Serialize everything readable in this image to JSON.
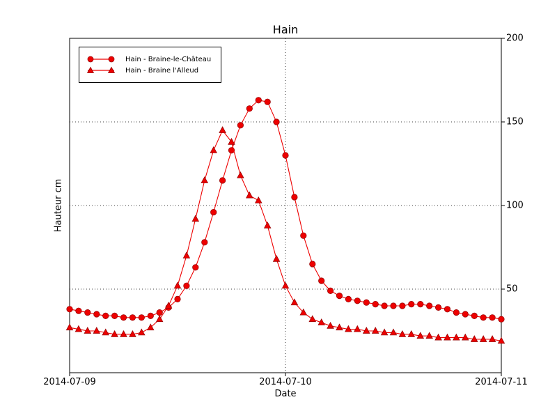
{
  "chart_data": {
    "type": "line",
    "title": "Hain",
    "xlabel": "Date",
    "ylabel": "Hauteur cm",
    "x_tick_labels": [
      "2014-07-09",
      "2014-07-10",
      "2014-07-11"
    ],
    "x_tick_hours": [
      0,
      24,
      48
    ],
    "y_ticks": [
      200,
      150,
      100,
      50
    ],
    "y_tick_side": "right",
    "ylim": [
      0,
      200
    ],
    "xlim_hours": [
      0,
      48
    ],
    "grid": true,
    "grid_style": "dotted",
    "legend_position": "upper-left",
    "line_color": "#ee0000",
    "marker_edge_color": "#990000",
    "x_hours": [
      0,
      1,
      2,
      3,
      4,
      5,
      6,
      7,
      8,
      9,
      10,
      11,
      12,
      13,
      14,
      15,
      16,
      17,
      18,
      19,
      20,
      21,
      22,
      23,
      24,
      25,
      26,
      27,
      28,
      29,
      30,
      31,
      32,
      33,
      34,
      35,
      36,
      37,
      38,
      39,
      40,
      41,
      42,
      43,
      44,
      45,
      46,
      47,
      48
    ],
    "series": [
      {
        "name": "Hain - Braine-le-Château",
        "marker": "circle",
        "color": "#ee0000",
        "values": [
          38,
          37,
          36,
          35,
          34,
          34,
          33,
          33,
          33,
          34,
          36,
          39,
          44,
          52,
          63,
          78,
          96,
          115,
          133,
          148,
          158,
          163,
          162,
          150,
          130,
          105,
          82,
          65,
          55,
          49,
          46,
          44,
          43,
          42,
          41,
          40,
          40,
          40,
          41,
          41,
          40,
          39,
          38,
          36,
          35,
          34,
          33,
          33,
          32
        ]
      },
      {
        "name": "Hain - Braine l'Alleud",
        "marker": "triangle",
        "color": "#ee0000",
        "values": [
          27,
          26,
          25,
          25,
          24,
          23,
          23,
          23,
          24,
          27,
          32,
          40,
          52,
          70,
          92,
          115,
          133,
          145,
          138,
          118,
          106,
          103,
          88,
          68,
          52,
          42,
          36,
          32,
          30,
          28,
          27,
          26,
          26,
          25,
          25,
          24,
          24,
          23,
          23,
          22,
          22,
          21,
          21,
          21,
          21,
          20,
          20,
          20,
          19
        ]
      }
    ]
  }
}
